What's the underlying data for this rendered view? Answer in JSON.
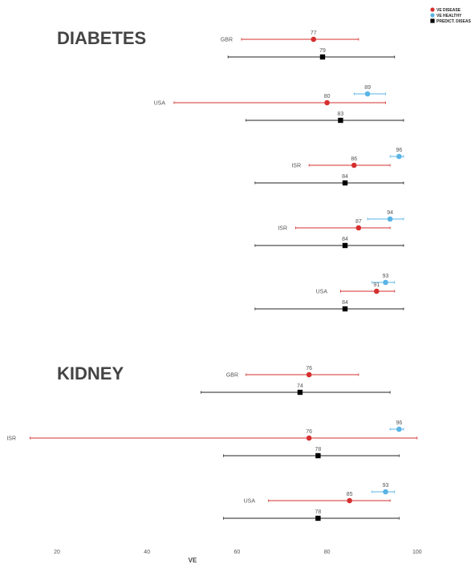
{
  "chart_data": {
    "type": "forest",
    "xlabel": "VE",
    "xlim": [
      10,
      102
    ],
    "x_ticks": [
      20,
      40,
      60,
      80,
      100
    ],
    "colors": {
      "VE DISEASE": "#d62f2f",
      "VE HEALTHY": "#5ab4e5",
      "PREDICT. DISEASE": "#000000"
    },
    "legend": {
      "placement": "top-right",
      "entries": [
        {
          "name": "VE DISEASE",
          "marker": "circle"
        },
        {
          "name": "VE HEALTHY",
          "marker": "circle"
        },
        {
          "name": "PREDICT. DISEASE",
          "marker": "square"
        }
      ]
    },
    "sections": [
      {
        "title": "DIABETES",
        "groups": [
          {
            "country": "GBR",
            "estimates": [
              {
                "series": "VE DISEASE",
                "value": 77,
                "lower": 61,
                "upper": 87
              },
              {
                "series": "PREDICT. DISEASE",
                "value": 79,
                "lower": 58,
                "upper": 95
              }
            ]
          },
          {
            "country": "USA",
            "estimates": [
              {
                "series": "VE HEALTHY",
                "value": 89,
                "lower": 86,
                "upper": 93
              },
              {
                "series": "VE DISEASE",
                "value": 80,
                "lower": 46,
                "upper": 93
              },
              {
                "series": "PREDICT. DISEASE",
                "value": 83,
                "lower": 62,
                "upper": 97
              }
            ]
          },
          {
            "country": "ISR",
            "estimates": [
              {
                "series": "VE HEALTHY",
                "value": 96,
                "lower": 94,
                "upper": 97
              },
              {
                "series": "VE DISEASE",
                "value": 86,
                "lower": 76,
                "upper": 94
              },
              {
                "series": "PREDICT. DISEASE",
                "value": 84,
                "lower": 64,
                "upper": 97
              }
            ]
          },
          {
            "country": "ISR",
            "estimates": [
              {
                "series": "VE HEALTHY",
                "value": 94,
                "lower": 89,
                "upper": 97
              },
              {
                "series": "VE DISEASE",
                "value": 87,
                "lower": 73,
                "upper": 94
              },
              {
                "series": "PREDICT. DISEASE",
                "value": 84,
                "lower": 64,
                "upper": 97
              }
            ]
          },
          {
            "country": "USA",
            "estimates": [
              {
                "series": "VE HEALTHY",
                "value": 93,
                "lower": 90,
                "upper": 95
              },
              {
                "series": "VE DISEASE",
                "value": 91,
                "lower": 83,
                "upper": 95
              },
              {
                "series": "PREDICT. DISEASE",
                "value": 84,
                "lower": 64,
                "upper": 97
              }
            ]
          }
        ]
      },
      {
        "title": "KIDNEY",
        "groups": [
          {
            "country": "GBR",
            "estimates": [
              {
                "series": "VE DISEASE",
                "value": 76,
                "lower": 62,
                "upper": 87
              },
              {
                "series": "PREDICT. DISEASE",
                "value": 74,
                "lower": 52,
                "upper": 94
              }
            ]
          },
          {
            "country": "ISR",
            "estimates": [
              {
                "series": "VE HEALTHY",
                "value": 96,
                "lower": 94,
                "upper": 97
              },
              {
                "series": "VE DISEASE",
                "value": 76,
                "lower": 14,
                "upper": 100
              },
              {
                "series": "PREDICT. DISEASE",
                "value": 78,
                "lower": 57,
                "upper": 96
              }
            ]
          },
          {
            "country": "USA",
            "estimates": [
              {
                "series": "VE HEALTHY",
                "value": 93,
                "lower": 90,
                "upper": 95
              },
              {
                "series": "VE DISEASE",
                "value": 85,
                "lower": 67,
                "upper": 94
              },
              {
                "series": "PREDICT. DISEASE",
                "value": 78,
                "lower": 57,
                "upper": 96
              }
            ]
          }
        ]
      }
    ]
  }
}
